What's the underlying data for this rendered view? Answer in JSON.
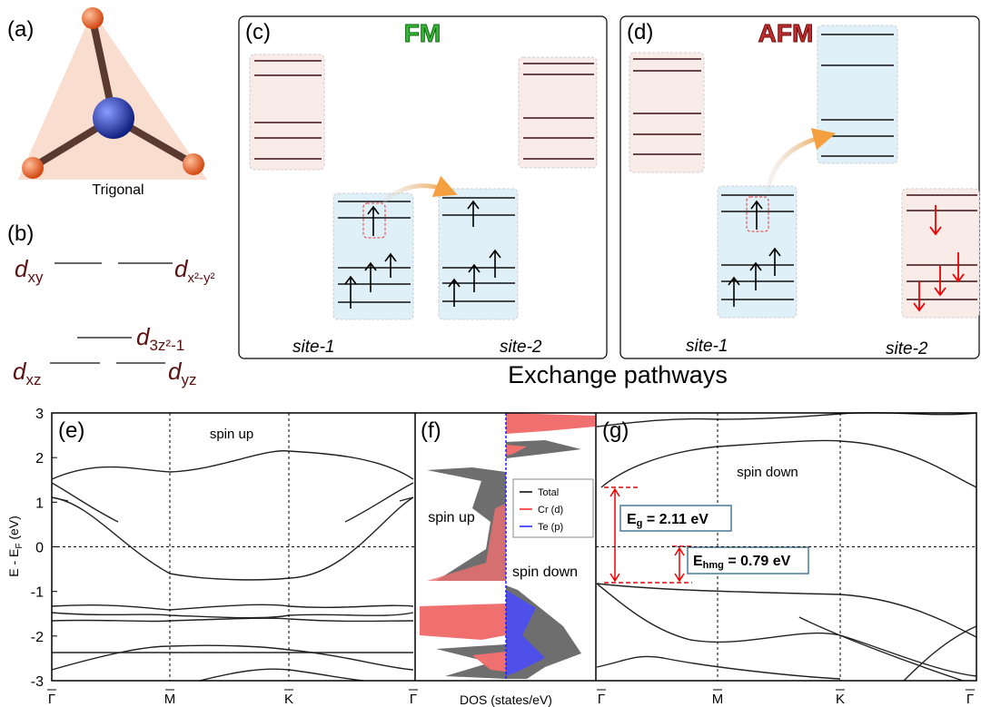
{
  "panel_a": {
    "label": "(a)",
    "caption": "Trigonal"
  },
  "panel_b": {
    "label": "(b)",
    "orbitals": [
      {
        "main": "d",
        "sub": "xy"
      },
      {
        "main": "d",
        "sub": "x²-y²"
      },
      {
        "main": "d",
        "sub": "3z²-1"
      },
      {
        "main": "d",
        "sub": "xz"
      },
      {
        "main": "d",
        "sub": "yz"
      }
    ]
  },
  "panel_c": {
    "label": "(c)",
    "title": "FM",
    "sites": [
      "site-1",
      "site-2"
    ]
  },
  "panel_d": {
    "label": "(d)",
    "title": "AFM",
    "sites": [
      "site-1",
      "site-2"
    ]
  },
  "caption": "Exchange pathways",
  "panel_e": {
    "label": "(e)",
    "annotation": "spin up",
    "ylabel": "E - E",
    "ylabel_sub": "F",
    "ylabel_unit": " (eV)",
    "ylim": [
      -3,
      3
    ],
    "yticks": [
      3,
      2,
      1,
      0,
      -1,
      -2,
      -3
    ],
    "kpoints": [
      "Γ",
      "M",
      "K",
      "Γ"
    ]
  },
  "panel_f": {
    "label": "(f)",
    "spin_up": "spin up",
    "spin_down": "spin down",
    "xlabel": "DOS (states/eV)",
    "legend": [
      {
        "name": "Total",
        "color": "#000000"
      },
      {
        "name": "Cr (d)",
        "color": "#ff2020"
      },
      {
        "name": "Te (p)",
        "color": "#2020ff"
      }
    ]
  },
  "panel_g": {
    "label": "(g)",
    "annotation": "spin down",
    "kpoints": [
      "Γ",
      "M",
      "K",
      "Γ"
    ],
    "gap": {
      "symbol": "E",
      "sub": "g",
      "text": " = 2.11 eV"
    },
    "hmg": {
      "symbol": "E",
      "sub": "hmg",
      "text": " = 0.79 eV"
    }
  }
}
